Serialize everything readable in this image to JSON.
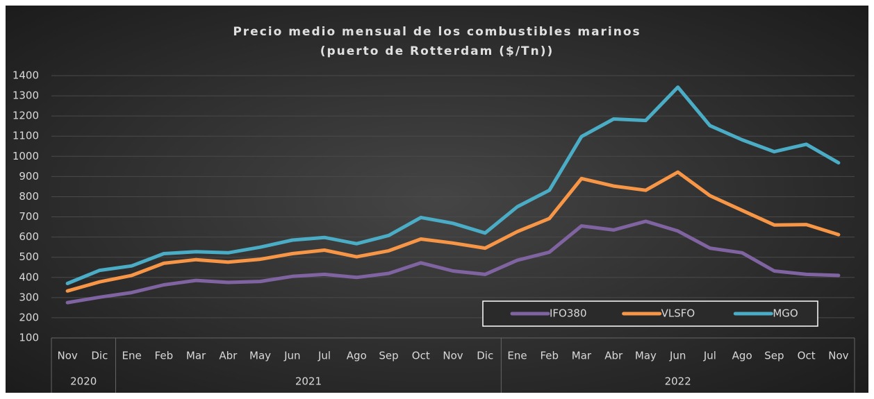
{
  "chart_data": {
    "type": "line",
    "title": [
      "Precio medio mensual de los combustibles marinos",
      "(puerto de Rotterdam ($/Tn))"
    ],
    "groups": [
      {
        "name": "2020",
        "categories": [
          "Nov",
          "Dic"
        ]
      },
      {
        "name": "2021",
        "categories": [
          "Ene",
          "Feb",
          "Mar",
          "Abr",
          "May",
          "Jun",
          "Jul",
          "Ago",
          "Sep",
          "Oct",
          "Nov",
          "Dic"
        ]
      },
      {
        "name": "2022",
        "categories": [
          "Ene",
          "Feb",
          "Mar",
          "Abr",
          "May",
          "Jun",
          "Jul",
          "Ago",
          "Sep",
          "Oct",
          "Nov"
        ]
      }
    ],
    "series": [
      {
        "name": "IFO380",
        "color": "#8064a2",
        "values": [
          275,
          302,
          325,
          363,
          385,
          375,
          380,
          405,
          415,
          400,
          420,
          472,
          432,
          415,
          485,
          525,
          655,
          635,
          678,
          630,
          545,
          522,
          432,
          415,
          410
        ]
      },
      {
        "name": "VLSFO",
        "color": "#f79646",
        "values": [
          333,
          378,
          410,
          470,
          488,
          476,
          490,
          518,
          535,
          502,
          532,
          590,
          570,
          545,
          627,
          692,
          890,
          853,
          832,
          922,
          805,
          732,
          660,
          662,
          612
        ]
      },
      {
        "name": "MGO",
        "color": "#4bacc6",
        "values": [
          370,
          435,
          457,
          518,
          527,
          522,
          550,
          585,
          598,
          567,
          608,
          697,
          668,
          620,
          750,
          832,
          1098,
          1185,
          1178,
          1343,
          1152,
          1082,
          1023,
          1060,
          968
        ]
      }
    ],
    "ylim": [
      100,
      1400
    ],
    "yticks": [
      100,
      200,
      300,
      400,
      500,
      600,
      700,
      800,
      900,
      1000,
      1100,
      1200,
      1300,
      1400
    ],
    "grid": true,
    "legend": "lower right"
  }
}
